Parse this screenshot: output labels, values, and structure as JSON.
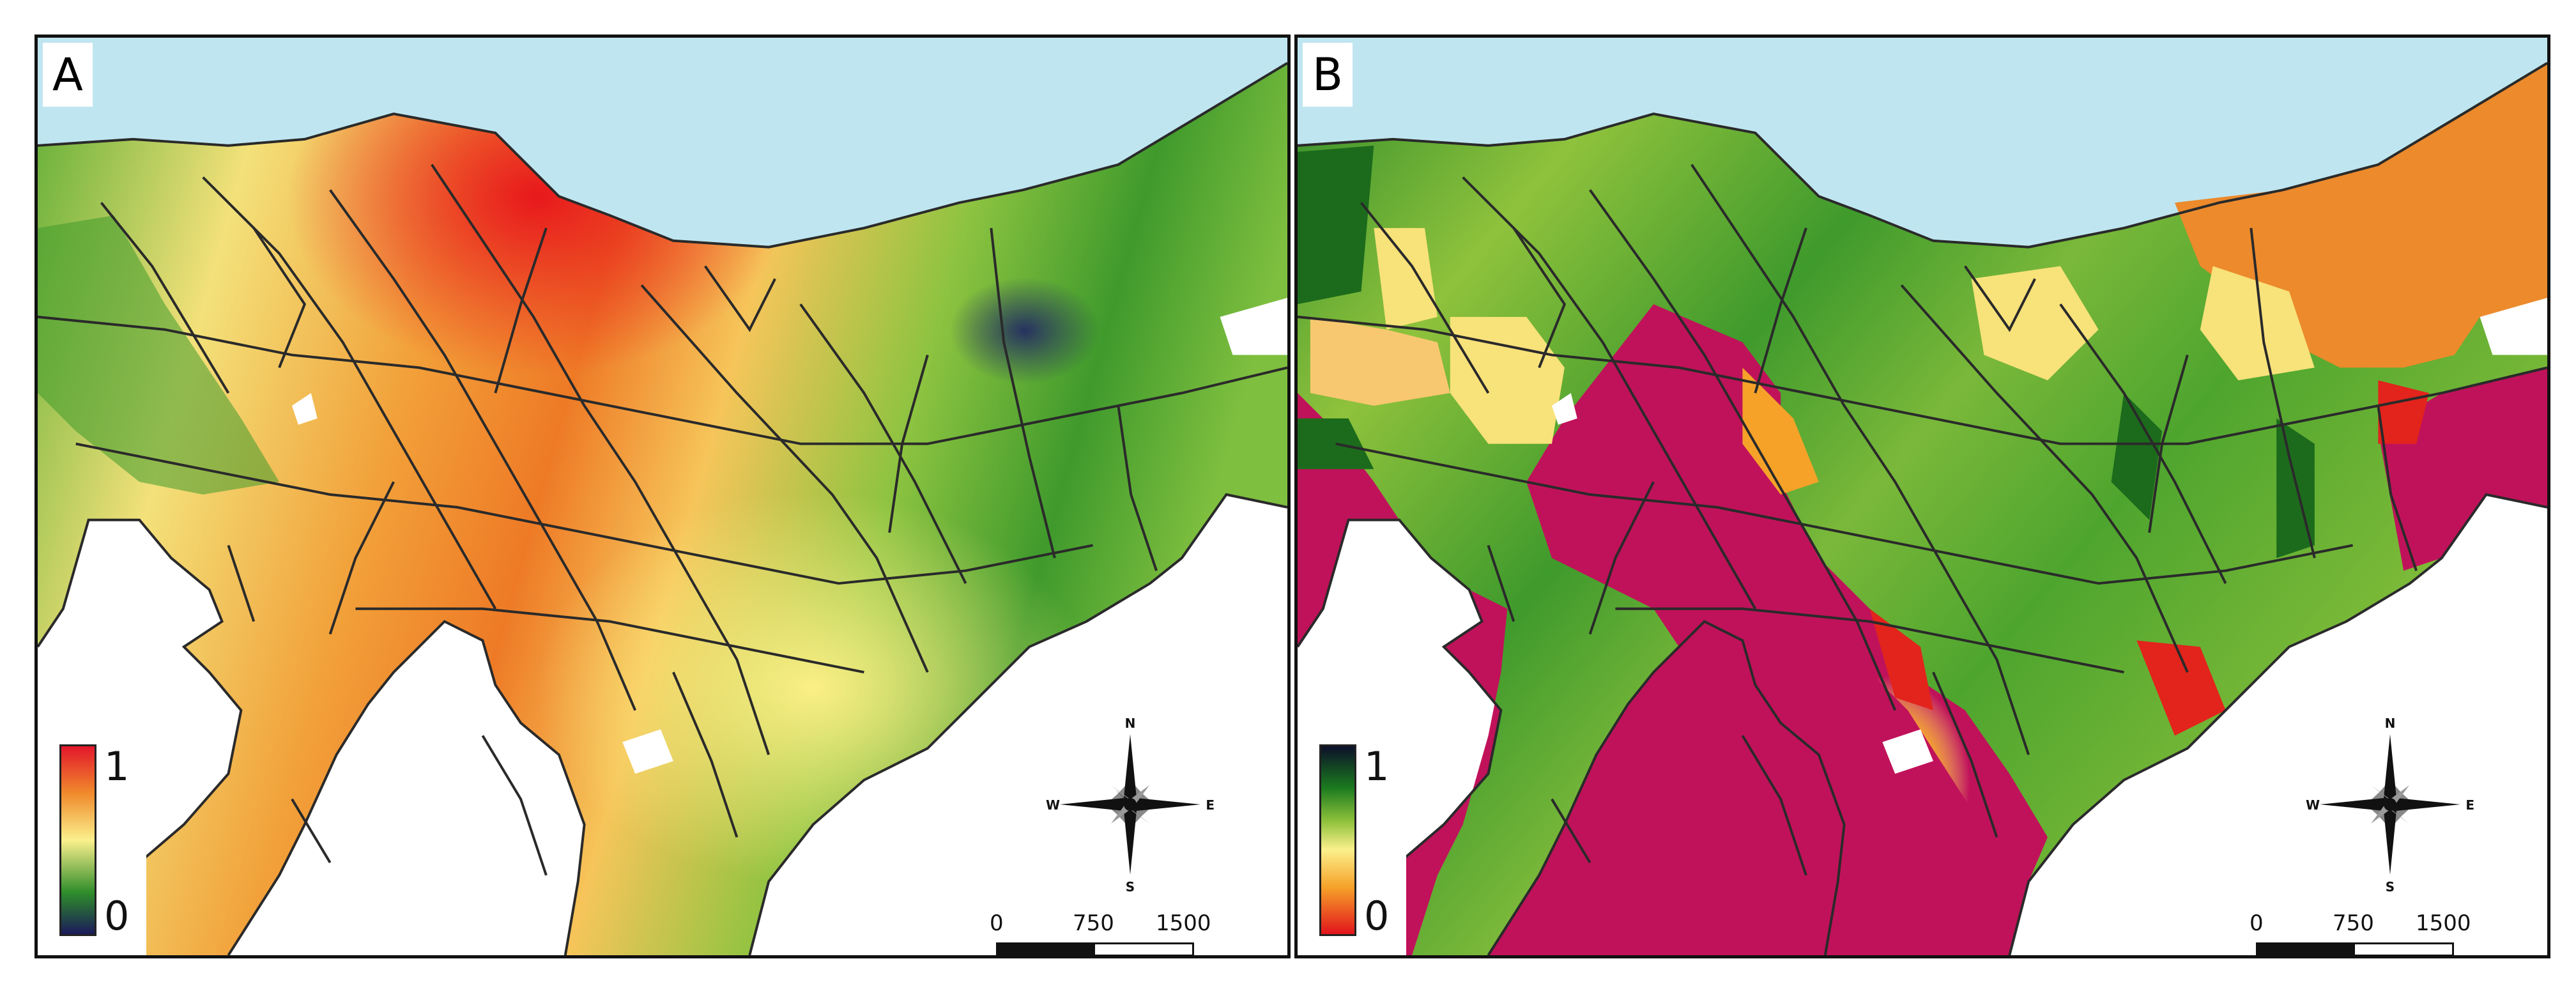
{
  "panels": [
    {
      "label": "A",
      "legend": {
        "max": "1",
        "min": "0",
        "colors": [
          "#e3162b",
          "#f08a2c",
          "#fbf08c",
          "#2e8c2a",
          "#1b1a5a"
        ]
      },
      "compass": {
        "n": "N",
        "s": "S",
        "e": "E",
        "w": "W"
      },
      "scale": {
        "zero": "0",
        "mid": "750",
        "max": "1500 m"
      }
    },
    {
      "label": "B",
      "legend": {
        "max": "1",
        "min": "0",
        "colors": [
          "#0c0f2a",
          "#1b7a1e",
          "#fbf08c",
          "#f6a229",
          "#e2141c"
        ]
      },
      "compass": {
        "n": "N",
        "s": "S",
        "e": "E",
        "w": "W"
      },
      "scale": {
        "zero": "0",
        "mid": "750",
        "max": "1500 m"
      }
    }
  ],
  "colors": {
    "sea": "#bfe6f0",
    "frame": "#111111",
    "boundary": "#2a2a2a",
    "panel_a": {
      "red": "#e8321e",
      "orange": "#f08a2c",
      "yellow": "#f8ec7a",
      "light_green": "#a9cf50",
      "green": "#3f9a2c",
      "dark": "#1d3a4a"
    },
    "panel_b": {
      "magenta": "#c0125a",
      "red": "#e2241c",
      "orange": "#ec8a2c",
      "yellow": "#f8e27a",
      "light_green": "#8fc23c",
      "green": "#3f9a2c",
      "dark_green": "#1c6b1c"
    }
  }
}
